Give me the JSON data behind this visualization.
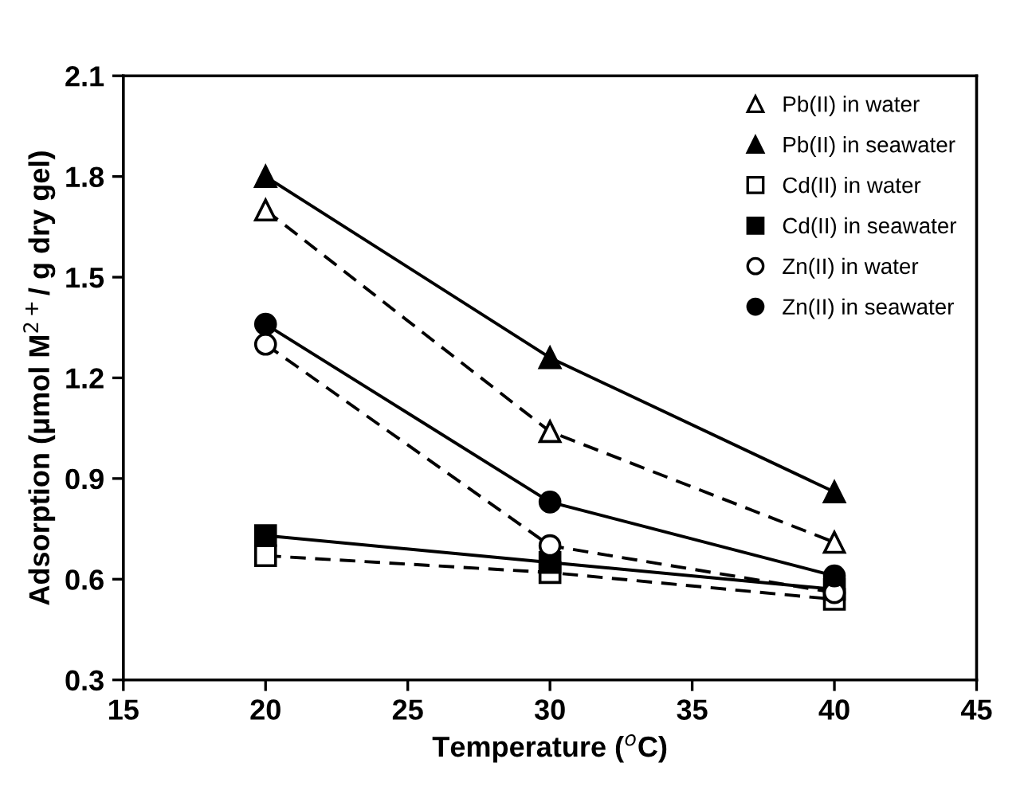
{
  "chart_data": {
    "type": "line",
    "xlabel": "Temperature ($^{o}$C)",
    "ylabel": "Adsorption (μmol M$^{2+}$/ g dry gel)",
    "x": [
      20,
      30,
      40
    ],
    "series": [
      {
        "name": "Pb(II) in water",
        "color": "#000000",
        "values": [
          1.7,
          1.04,
          0.71
        ],
        "marker": "triangle-open",
        "line_style": "dashed"
      },
      {
        "name": "Pb(II) in seawater",
        "color": "#000000",
        "values": [
          1.8,
          1.26,
          0.86
        ],
        "marker": "triangle",
        "line_style": "solid"
      },
      {
        "name": "Cd(II) in water",
        "color": "#000000",
        "values": [
          0.67,
          0.62,
          0.54
        ],
        "marker": "square-open",
        "line_style": "dashed"
      },
      {
        "name": "Cd(II) in seawater",
        "color": "#000000",
        "values": [
          0.73,
          0.65,
          0.57
        ],
        "marker": "square",
        "line_style": "solid"
      },
      {
        "name": "Zn(II) in water",
        "color": "#000000",
        "values": [
          1.3,
          0.7,
          0.56
        ],
        "marker": "circle-open",
        "line_style": "dashed"
      },
      {
        "name": "Zn(II) in seawater",
        "color": "#000000",
        "values": [
          1.36,
          0.83,
          0.61
        ],
        "marker": "circle",
        "line_style": "solid"
      }
    ],
    "xlim": [
      15,
      45
    ],
    "xticks": [
      15,
      20,
      25,
      30,
      35,
      40,
      45
    ],
    "ylim": [
      0.3,
      2.1
    ],
    "yticks": [
      0.3,
      0.6,
      0.9,
      1.2,
      1.5,
      1.8,
      2.1
    ],
    "grid": false,
    "legend": "top right"
  }
}
